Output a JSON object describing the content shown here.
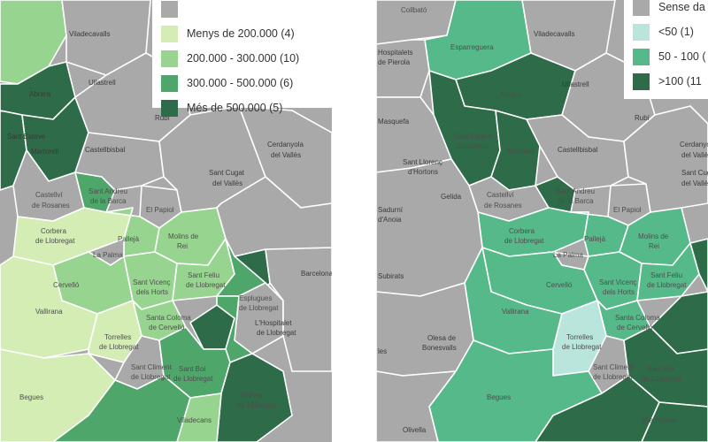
{
  "colors": {
    "gray": "#a9a9a9",
    "c1": "#d4edb5",
    "c2": "#97d48f",
    "c3": "#4fa66a",
    "c4": "#2e6b48",
    "r_gray": "#a9a9a9",
    "r1": "#b9e5dc",
    "r2": "#55b98a",
    "r3": "#2e6b48"
  },
  "left_map": {
    "legend": {
      "items": [
        {
          "label": "",
          "color": "#a9a9a9"
        },
        {
          "label": "Menys de 200.000 (4)",
          "color": "#d4edb5"
        },
        {
          "label": "200.000 - 300.000 (10)",
          "color": "#97d48f"
        },
        {
          "label": "300.000 - 500.000 (6)",
          "color": "#4fa66a"
        },
        {
          "label": "Més de 500.000 (5)",
          "color": "#2e6b48"
        }
      ]
    },
    "labels": {
      "viladecavalls": "Viladecavalls",
      "ullastrell": "Ullastrell",
      "abrera": "Abrera",
      "rubi": "Rubí",
      "sant_esteve": "Sant Esteve",
      "martorell": "Martorell",
      "castellbisbal": "Castellbisbal",
      "cerdanyola": "Cerdanyola",
      "del_valles": "del Vallès",
      "sant_cugat": "Sant Cugat",
      "sant_cugat2": "del Vallès",
      "castellvi": "Castellví",
      "de_rosanes": "de Rosanes",
      "sant_andreu": "Sant Andreu",
      "de_la_barca": "de la Barca",
      "papiol": "El Papiol",
      "corbera": "Corbera",
      "de_llobregat": "de Llobregat",
      "pallejà": "Pallejà",
      "molins": "Molins de",
      "rei": "Rei",
      "la_palma": "La Palma",
      "cervello": "Cervelló",
      "sant_vicenc": "Sant Vicenç",
      "dels_horts": "dels Horts",
      "sant_feliu": "Sant Feliu",
      "de_llobregat2": "de Llobregat",
      "esplugues": "Esplugues",
      "de_llobregat3": "de Llobregat",
      "santa_coloma": "Santa Coloma",
      "de_cervello": "de Cervelló",
      "hospitalet": "L'Hospitalet",
      "de_llobregat4": "de Llobregat",
      "barcelona": "Barcelona",
      "vallirana": "Vallirana",
      "torrelles": "Torrelles",
      "de_llobregat5": "de Llobregat",
      "sant_climent": "Sant Climent",
      "de_llobregat6": "de Llobregat",
      "sant_boi": "Sant Boi",
      "de_llobregat7": "de Llobregat",
      "el_prat": "El Prat",
      "de_llobregat8": "de Llobregat",
      "begues": "Begues",
      "viladecans": "Viladecans"
    }
  },
  "right_map": {
    "legend": {
      "items": [
        {
          "label": "Sense da",
          "color": "#a9a9a9"
        },
        {
          "label": "<50 (1)",
          "color": "#b9e5dc"
        },
        {
          "label": "50 - 100 (",
          "color": "#55b98a"
        },
        {
          "label": ">100 (11",
          "color": "#2e6b48"
        }
      ]
    },
    "labels": {
      "collbato": "Collbató",
      "esparreguera": "Esparreguera",
      "viladecavalls": "Viladecavalls",
      "hospitalets": "Hospitalets",
      "de_pierola": "de Pierola",
      "abrera": "Abrera",
      "ullastrell": "Ullastrell",
      "masquefa": "Masquefa",
      "rubi": "Rubí",
      "sant_esteve": "Sant Esteve",
      "sesrovires": "Sesrovires",
      "martorell": "Martorell",
      "castellbisbal": "Castellbisbal",
      "sant_llorenc": "Sant Llorenç",
      "dhortons": "d'Hortons",
      "cerdanyola": "Cerdanyola",
      "del_valles": "del Vallès",
      "sant_cugat": "Sant Cugat",
      "del_valles2": "del Vallès",
      "castellvi": "Castellví",
      "de_rosanes": "de Rosanes",
      "sant_andreu": "Sant Andreu",
      "de_la_barca": "de la Barca",
      "gelida": "Gelida",
      "sadurni": "Sadurní",
      "anoia": "d'Anoia",
      "papiol": "El Papiol",
      "corbera": "Corbera",
      "de_llobregat": "de Llobregat",
      "palleja": "Pallejà",
      "molins": "Molins de",
      "rei": "Rei",
      "la_palma": "La Palma",
      "cervello": "Cervelló",
      "subirats": "Subirats",
      "sant_vicenc": "Sant Vicenç",
      "dels_horts": "dels Horts",
      "sant_feliu": "Sant Feliu",
      "de_llobregat2": "de Llobregat",
      "vallirana": "Vallirana",
      "santa_coloma": "Santa Coloma",
      "de_cervello": "de Cervelló",
      "torrelles": "Torrelles",
      "de_llobregat3": "de Llobregat",
      "olesa": "Olesa de",
      "bonesvalls": "Bonesvalls",
      "sant_climent": "Sant Climent",
      "de_llobregat4": "de Llobregat",
      "sant_boi": "Sant Boi",
      "de_llobregat5": "de Llobregat",
      "begues": "Begues",
      "olivella": "Olivella",
      "viladecans": "Viladecans",
      "les": "les"
    }
  }
}
